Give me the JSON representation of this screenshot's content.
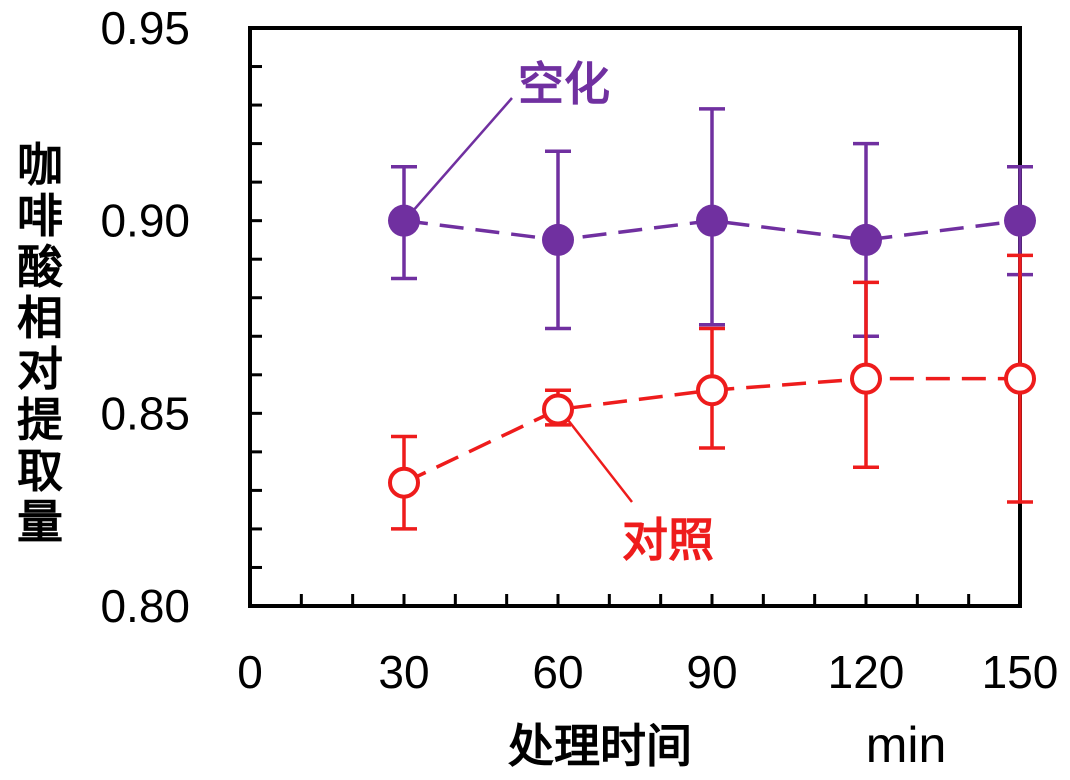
{
  "chart_data": {
    "type": "line",
    "ylabel_chars": [
      "咖",
      "啡",
      "酸",
      "相",
      "对",
      "提",
      "取",
      "量"
    ],
    "xlabel": "处理时间",
    "xunit": "min",
    "x": [
      30,
      60,
      90,
      120,
      150
    ],
    "xticks": [
      0,
      30,
      60,
      90,
      120,
      150
    ],
    "xlim": [
      0,
      150
    ],
    "yticks": [
      "0.80",
      "0.85",
      "0.90",
      "0.95"
    ],
    "ylim": [
      0.8,
      0.95
    ],
    "grid": false,
    "series": [
      {
        "name": "空化",
        "color": "#7030a0",
        "marker": "filled-circle",
        "values": [
          0.9,
          0.895,
          0.9,
          0.895,
          0.9
        ],
        "err_low": [
          0.885,
          0.872,
          0.873,
          0.87,
          0.886
        ],
        "err_high": [
          0.914,
          0.918,
          0.929,
          0.92,
          0.914
        ]
      },
      {
        "name": "对照",
        "color": "#ee1c1c",
        "marker": "open-circle",
        "values": [
          0.832,
          0.851,
          0.856,
          0.859,
          0.859
        ],
        "err_low": [
          0.82,
          0.847,
          0.841,
          0.836,
          0.827
        ],
        "err_high": [
          0.844,
          0.856,
          0.872,
          0.884,
          0.891
        ]
      }
    ]
  }
}
